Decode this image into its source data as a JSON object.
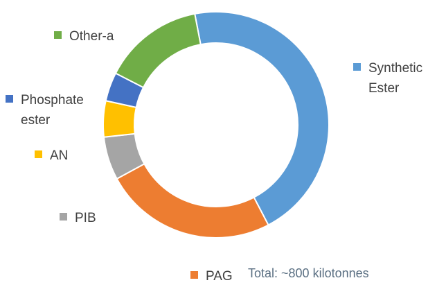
{
  "chart_data": {
    "type": "pie",
    "style": "donut",
    "categories": [
      "Synthetic Ester",
      "PAG",
      "PIB",
      "AN",
      "Phosphate ester",
      "Other-a"
    ],
    "label_lines": [
      [
        "Synthetic",
        "Ester"
      ],
      [
        "PAG"
      ],
      [
        "PIB"
      ],
      [
        "AN"
      ],
      [
        "Phosphate",
        "ester"
      ],
      [
        "Other-a"
      ]
    ],
    "values": [
      44,
      24,
      6,
      5,
      4,
      14
    ],
    "colors": [
      "#5b9bd5",
      "#ed7d31",
      "#a5a5a5",
      "#ffc000",
      "#4472c4",
      "#70ad47"
    ],
    "annotation": "Total: ~800 kilotonnes",
    "legend": "labels beside segments",
    "grid": false
  }
}
